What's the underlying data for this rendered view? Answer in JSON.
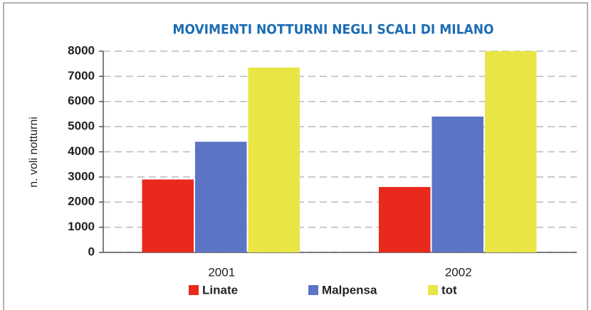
{
  "chart_data": {
    "type": "bar",
    "title": "MOVIMENTI NOTTURNI NEGLI SCALI DI MILANO",
    "y_label": "n. voli notturni",
    "categories": [
      "2001",
      "2002"
    ],
    "series": [
      {
        "name": "Linate",
        "color": "#e8291c",
        "values": [
          2900,
          2600
        ]
      },
      {
        "name": "Malpensa",
        "color": "#5b74c4",
        "values": [
          4400,
          5400
        ]
      },
      {
        "name": "tot",
        "color": "#e9e545",
        "values": [
          7350,
          8000
        ]
      }
    ],
    "ylim": [
      0,
      8000
    ],
    "yticks": [
      0,
      1000,
      2000,
      3000,
      4000,
      5000,
      6000,
      7000,
      8000
    ],
    "grid": true
  }
}
